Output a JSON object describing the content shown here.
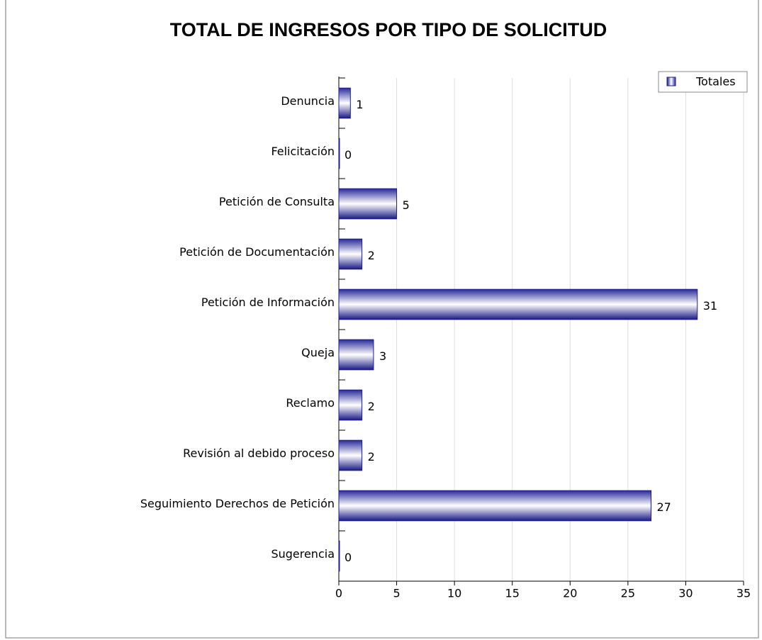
{
  "chart_data": {
    "type": "hbar",
    "title": "TOTAL DE INGRESOS POR TIPO DE SOLICITUD",
    "categories": [
      "Denuncia",
      "Felicitación",
      "Petición de Consulta",
      "Petición de Documentación",
      "Petición de Información",
      "Queja",
      "Reclamo",
      "Revisión al debido proceso",
      "Seguimiento Derechos de Petición",
      "Sugerencia"
    ],
    "series": [
      {
        "name": "Totales",
        "color": "#1c1c8e",
        "values": [
          1,
          0,
          5,
          2,
          31,
          3,
          2,
          2,
          27,
          0
        ]
      }
    ],
    "xlim": [
      0,
      35
    ],
    "xticks": [
      0,
      5,
      10,
      15,
      20,
      25,
      30,
      35
    ],
    "grid": true,
    "legend": "top-right",
    "value_label_color": "#a01818"
  }
}
